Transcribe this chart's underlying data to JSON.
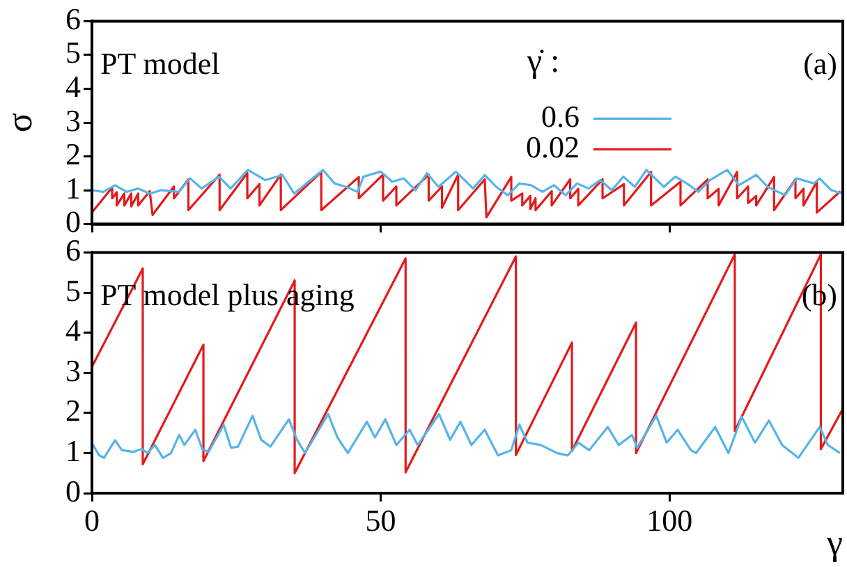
{
  "chart_data": [
    {
      "type": "line",
      "ylabel": "σ",
      "xlim": [
        0,
        130
      ],
      "ylim": [
        0,
        6
      ],
      "xticks": [
        0,
        50,
        100
      ],
      "yticks": [
        0,
        1,
        2,
        3,
        4,
        5,
        6
      ],
      "tick_labels": "y",
      "grid": false,
      "legend": "right",
      "legend_title": "γ̇ :",
      "annotations": [
        "PT model",
        "(a)"
      ],
      "series": [
        {
          "name": "0.6",
          "color": "#56b4e9",
          "x": [
            0,
            2,
            4,
            6,
            8,
            10,
            12,
            15,
            17,
            19,
            22,
            24,
            27,
            30,
            33,
            35,
            40,
            42,
            44,
            46,
            47,
            50,
            52,
            54,
            56,
            58,
            60,
            63,
            66,
            68,
            70,
            72,
            74,
            76,
            78,
            80,
            82,
            84,
            86,
            88,
            90,
            92,
            94,
            96,
            99,
            101,
            103,
            105,
            107,
            110,
            112,
            115,
            117,
            120,
            122,
            125,
            126,
            128,
            130
          ],
          "values": [
            1.0,
            0.95,
            1.15,
            0.95,
            1.05,
            0.9,
            1.0,
            0.95,
            1.35,
            1.05,
            1.4,
            1.05,
            1.6,
            1.3,
            1.45,
            0.9,
            1.6,
            1.2,
            1.1,
            0.95,
            1.4,
            1.55,
            1.25,
            1.35,
            1.0,
            1.5,
            1.1,
            1.55,
            1.05,
            1.45,
            1.1,
            0.85,
            1.2,
            1.15,
            0.95,
            1.15,
            0.85,
            1.2,
            1.05,
            1.3,
            1.0,
            1.4,
            1.1,
            1.6,
            1.1,
            1.4,
            1.2,
            0.95,
            1.3,
            1.6,
            1.15,
            1.45,
            1.1,
            0.85,
            1.35,
            1.2,
            1.35,
            1.0,
            0.9
          ]
        },
        {
          "name": "0.02",
          "color": "#e41a1c",
          "x": [
            0,
            3.5,
            3.5,
            4.3,
            4.3,
            5.6,
            5.6,
            6.8,
            6.8,
            8,
            8,
            10,
            10.5,
            14.2,
            14.2,
            16.7,
            16.7,
            22.1,
            22.1,
            26.9,
            26.9,
            29,
            29,
            32.7,
            32.7,
            39.7,
            39.7,
            46.2,
            46.2,
            50.4,
            50.4,
            52.7,
            52.7,
            58.3,
            58.3,
            60.6,
            60.6,
            63.4,
            63.4,
            68,
            68.3,
            72.6,
            72.6,
            74.5,
            74.5,
            75.9,
            75.9,
            76.8,
            76.8,
            79.6,
            79.6,
            82.8,
            82.8,
            84.2,
            84.2,
            88.4,
            88.4,
            92.1,
            92.1,
            96.8,
            96.8,
            101.9,
            101.9,
            106.6,
            106.6,
            108.5,
            108.5,
            111.7,
            111.7,
            113.6,
            113.6,
            115,
            115,
            118.1,
            118.1,
            121.8,
            121.8,
            123.2,
            123.2,
            125.5,
            125.5,
            129.6
          ],
          "values": [
            0.34,
            1.08,
            0.76,
            0.94,
            0.55,
            0.9,
            0.55,
            0.9,
            0.52,
            0.9,
            0.55,
            0.97,
            0.27,
            1.11,
            0.76,
            1.32,
            0.41,
            1.46,
            0.41,
            1.51,
            0.76,
            1.18,
            0.55,
            1.46,
            0.41,
            1.54,
            0.41,
            1.39,
            0.76,
            1.46,
            0.69,
            1.11,
            0.55,
            1.46,
            0.69,
            1.11,
            0.48,
            1.46,
            0.41,
            1.32,
            0.2,
            1.39,
            0.69,
            0.9,
            0.55,
            0.83,
            0.44,
            0.76,
            0.41,
            0.97,
            0.55,
            1.32,
            0.76,
            1.04,
            0.55,
            1.32,
            0.76,
            1.18,
            0.55,
            1.54,
            0.55,
            1.25,
            0.55,
            1.32,
            0.76,
            1.04,
            0.55,
            1.54,
            0.76,
            1.11,
            0.62,
            0.83,
            0.55,
            1.39,
            0.41,
            1.32,
            0.76,
            1.04,
            0.55,
            1.25,
            0.34,
            0.97
          ]
        }
      ]
    },
    {
      "type": "line",
      "xlabel": "γ",
      "xlim": [
        0,
        130
      ],
      "ylim": [
        0,
        6
      ],
      "xticks": [
        0,
        50,
        100
      ],
      "yticks": [
        0,
        1,
        2,
        3,
        4,
        5,
        6
      ],
      "grid": false,
      "annotations": [
        "PT model plus aging",
        "(b)"
      ],
      "series": [
        {
          "color": "#56b4e9",
          "x": [
            0,
            1.2,
            2.1,
            4,
            5.2,
            7.2,
            8.6,
            9.6,
            10.9,
            12.3,
            13.7,
            15.1,
            16,
            17.9,
            19.1,
            20.2,
            22.8,
            24.1,
            25.3,
            27.8,
            29.3,
            30.9,
            34.1,
            35.5,
            36.9,
            40.9,
            42.5,
            44.3,
            47.6,
            49,
            50.8,
            52.7,
            55,
            56.4,
            60.1,
            62,
            63.8,
            65.7,
            68,
            70.3,
            72.6,
            74,
            75.4,
            77.7,
            80.5,
            82.4,
            84.2,
            86.1,
            89.3,
            91.2,
            93.5,
            94.4,
            97.7,
            99.5,
            101.4,
            103.7,
            104.6,
            107.9,
            110.2,
            112.5,
            114.8,
            117.2,
            119.5,
            122.3,
            126,
            127.4,
            129.5
          ],
          "values": [
            1.25,
            0.95,
            0.88,
            1.32,
            1.07,
            1.03,
            1.1,
            1.0,
            1.2,
            0.88,
            1.0,
            1.45,
            1.2,
            1.58,
            1.1,
            1.03,
            1.7,
            1.13,
            1.16,
            1.93,
            1.33,
            1.16,
            1.84,
            1.33,
            1.0,
            1.97,
            1.39,
            1.0,
            1.78,
            1.39,
            1.84,
            1.2,
            1.58,
            1.2,
            1.97,
            1.33,
            1.78,
            1.2,
            1.58,
            0.94,
            1.07,
            1.71,
            1.26,
            1.2,
            1.0,
            0.94,
            1.26,
            1.07,
            1.65,
            1.2,
            1.45,
            1.13,
            1.93,
            1.26,
            1.58,
            1.07,
            1.0,
            1.65,
            1.0,
            1.9,
            1.26,
            1.81,
            1.2,
            0.88,
            1.65,
            1.2,
            1.0
          ]
        },
        {
          "color": "#e41a1c",
          "x": [
            0,
            8.8,
            8.8,
            19.3,
            19.3,
            35.1,
            35.1,
            54.3,
            54.3,
            73.4,
            73.4,
            83.1,
            83.1,
            94.2,
            94.2,
            111.3,
            111.3,
            126.2,
            126.2,
            130
          ],
          "values": [
            3.15,
            5.6,
            0.72,
            3.7,
            0.8,
            5.3,
            0.5,
            5.85,
            0.52,
            5.9,
            0.95,
            3.75,
            1.05,
            4.25,
            1.0,
            5.95,
            1.55,
            5.95,
            1.1,
            2.1
          ]
        }
      ]
    }
  ]
}
